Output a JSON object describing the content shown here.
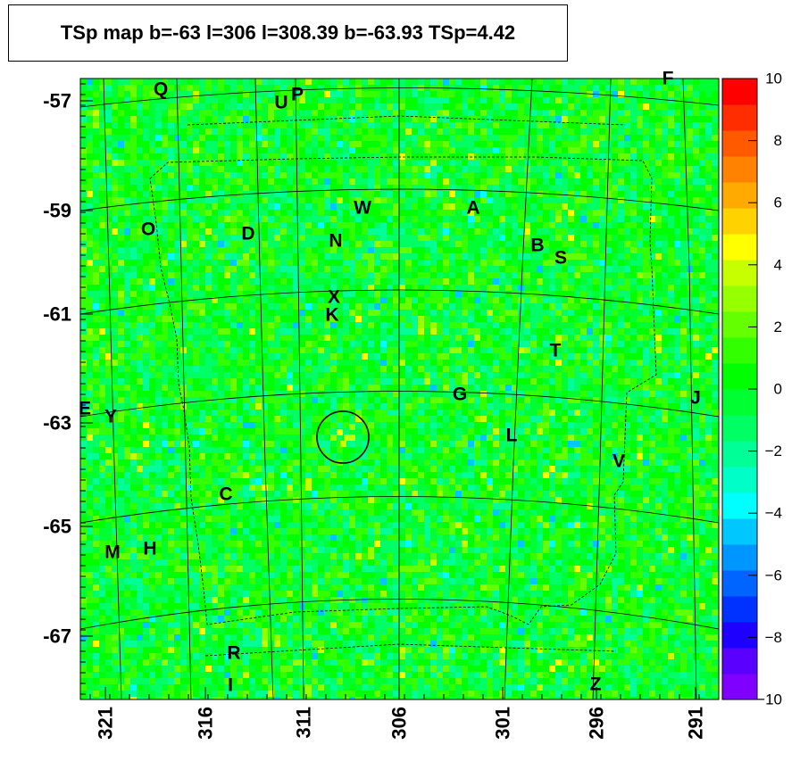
{
  "title": "TSp map b=-63 l=306 l=308.39 b=-63.93 TSp=4.42",
  "chart_data": {
    "type": "heatmap",
    "title": "TSp map b=-63 l=306 l=308.39 b=-63.93 TSp=4.42",
    "xlabel": "",
    "ylabel": "",
    "x_ticks": [
      "321",
      "316",
      "311",
      "306",
      "301",
      "296",
      "291"
    ],
    "y_ticks": [
      "-57",
      "-59",
      "-61",
      "-63",
      "-65",
      "-67"
    ],
    "colorbar": {
      "range": [
        -10,
        10
      ],
      "tick_labels": [
        "10",
        "8",
        "6",
        "4",
        "2",
        "0",
        "−2",
        "−4",
        "−6",
        "−8",
        "−10"
      ],
      "colors": [
        "#7f00ff",
        "#5a00ff",
        "#1e00ff",
        "#0032ff",
        "#0064ff",
        "#0096ff",
        "#00c8ff",
        "#00ffff",
        "#00ffc8",
        "#00ff96",
        "#00ff64",
        "#00ff32",
        "#00ff00",
        "#32ff00",
        "#64ff00",
        "#96ff00",
        "#c8ff00",
        "#ffff00",
        "#ffd200",
        "#ffaa00",
        "#ff8200",
        "#ff5a00",
        "#ff2d00",
        "#ff0000"
      ]
    },
    "dominant_value_range": [
      -2,
      2
    ],
    "sources": [
      {
        "label": "Q"
      },
      {
        "label": "U"
      },
      {
        "label": "P"
      },
      {
        "label": "F"
      },
      {
        "label": "W"
      },
      {
        "label": "A"
      },
      {
        "label": "O"
      },
      {
        "label": "D"
      },
      {
        "label": "N"
      },
      {
        "label": "B"
      },
      {
        "label": "S"
      },
      {
        "label": "X"
      },
      {
        "label": "K"
      },
      {
        "label": "T"
      },
      {
        "label": "G"
      },
      {
        "label": "J"
      },
      {
        "label": "E"
      },
      {
        "label": "Y"
      },
      {
        "label": "L"
      },
      {
        "label": "V"
      },
      {
        "label": "C"
      },
      {
        "label": "M"
      },
      {
        "label": "H"
      },
      {
        "label": "R"
      },
      {
        "label": "I"
      },
      {
        "label": "Z"
      }
    ],
    "highlight": {
      "l": 308.39,
      "b": -63.93,
      "tsp": 4.42
    }
  }
}
